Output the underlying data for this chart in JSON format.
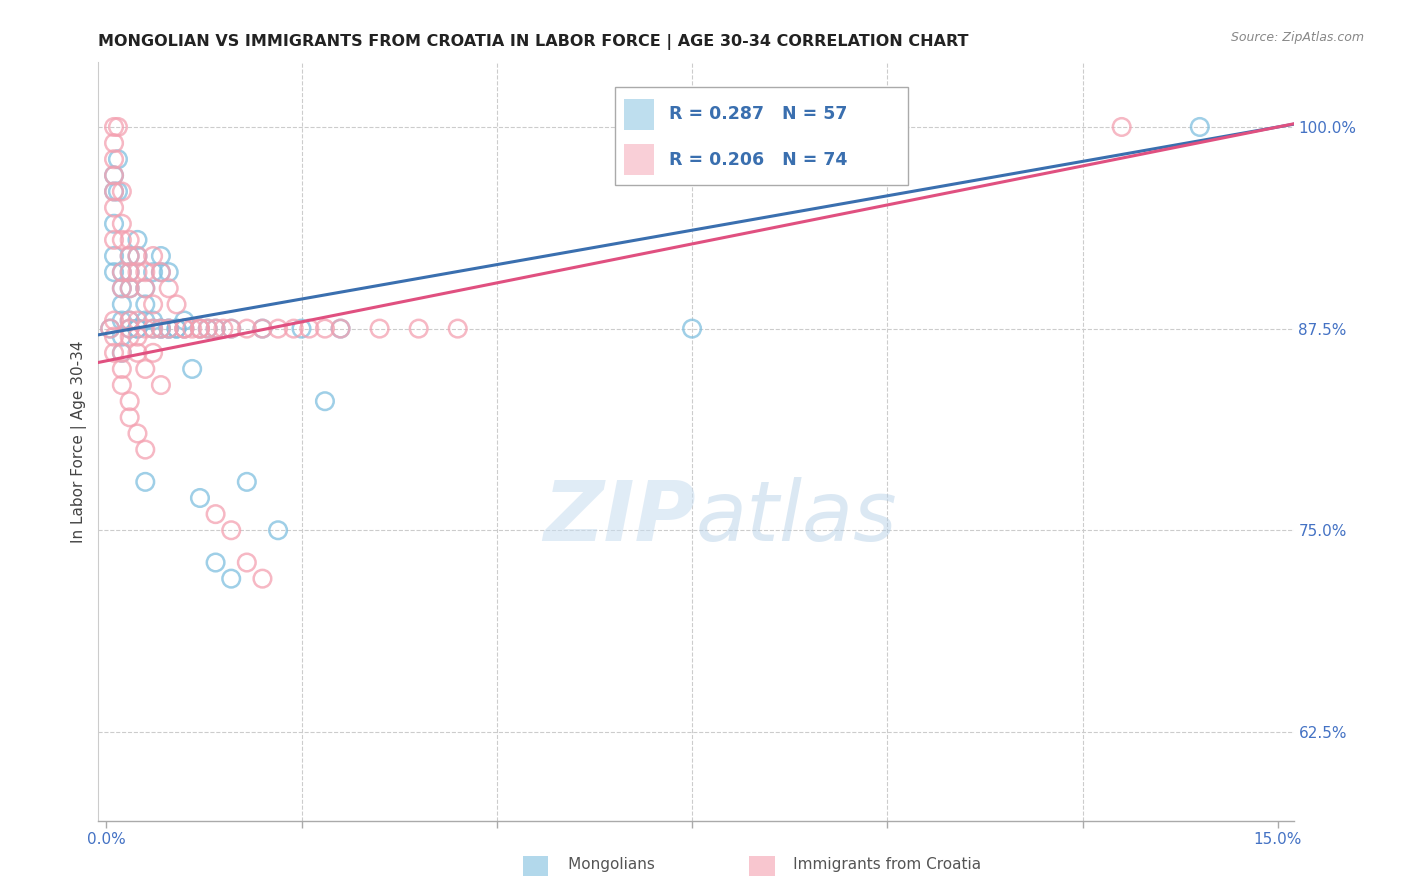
{
  "title": "MONGOLIAN VS IMMIGRANTS FROM CROATIA IN LABOR FORCE | AGE 30-34 CORRELATION CHART",
  "source": "Source: ZipAtlas.com",
  "ylabel": "In Labor Force | Age 30-34",
  "xlim": [
    0.0,
    0.15
  ],
  "ylim": [
    0.57,
    1.04
  ],
  "xticks": [
    0.0,
    0.025,
    0.05,
    0.075,
    0.1,
    0.125,
    0.15
  ],
  "xticklabels": [
    "0.0%",
    "",
    "",
    "",
    "",
    "",
    "15.0%"
  ],
  "yticks_right": [
    0.625,
    0.75,
    0.875,
    1.0
  ],
  "yticklabels_right": [
    "62.5%",
    "75.0%",
    "87.5%",
    "100.0%"
  ],
  "blue_R": 0.287,
  "blue_N": 57,
  "pink_R": 0.206,
  "pink_N": 74,
  "blue_color": "#7fbfdf",
  "pink_color": "#f4a0b0",
  "blue_line_color": "#3a6faf",
  "pink_line_color": "#e05080",
  "bg_color": "#ffffff",
  "grid_color": "#cccccc",
  "tick_label_color": "#4472c4",
  "title_color": "#222222",
  "source_color": "#888888",
  "blue_x": [
    0.0005,
    0.001,
    0.001,
    0.001,
    0.001,
    0.001,
    0.0015,
    0.0015,
    0.002,
    0.002,
    0.002,
    0.002,
    0.002,
    0.002,
    0.003,
    0.003,
    0.003,
    0.003,
    0.004,
    0.004,
    0.004,
    0.005,
    0.005,
    0.005,
    0.006,
    0.006,
    0.007,
    0.007,
    0.007,
    0.008,
    0.009,
    0.01,
    0.01,
    0.011,
    0.012,
    0.013,
    0.014,
    0.016,
    0.018,
    0.02,
    0.022,
    0.025,
    0.028,
    0.03,
    0.012,
    0.014,
    0.016,
    0.008,
    0.009,
    0.003,
    0.004,
    0.005,
    0.006,
    0.007,
    0.008,
    0.14,
    0.075
  ],
  "blue_y": [
    0.875,
    0.97,
    0.96,
    0.94,
    0.92,
    0.91,
    0.98,
    0.96,
    0.91,
    0.9,
    0.89,
    0.88,
    0.87,
    0.86,
    0.92,
    0.91,
    0.9,
    0.88,
    0.93,
    0.92,
    0.875,
    0.9,
    0.89,
    0.88,
    0.91,
    0.88,
    0.92,
    0.91,
    0.875,
    0.91,
    0.875,
    0.88,
    0.875,
    0.85,
    0.875,
    0.875,
    0.875,
    0.875,
    0.78,
    0.875,
    0.75,
    0.875,
    0.83,
    0.875,
    0.77,
    0.73,
    0.72,
    0.875,
    0.875,
    0.875,
    0.875,
    0.78,
    0.875,
    0.875,
    0.875,
    1.0,
    0.875
  ],
  "pink_x": [
    0.0005,
    0.001,
    0.001,
    0.001,
    0.001,
    0.001,
    0.001,
    0.001,
    0.0015,
    0.002,
    0.002,
    0.002,
    0.002,
    0.002,
    0.003,
    0.003,
    0.003,
    0.003,
    0.003,
    0.004,
    0.004,
    0.004,
    0.005,
    0.005,
    0.005,
    0.006,
    0.006,
    0.006,
    0.007,
    0.007,
    0.008,
    0.008,
    0.009,
    0.01,
    0.011,
    0.012,
    0.013,
    0.014,
    0.015,
    0.016,
    0.018,
    0.02,
    0.022,
    0.024,
    0.026,
    0.028,
    0.03,
    0.035,
    0.04,
    0.045,
    0.002,
    0.003,
    0.003,
    0.004,
    0.004,
    0.005,
    0.006,
    0.007,
    0.001,
    0.001,
    0.001,
    0.002,
    0.002,
    0.003,
    0.003,
    0.004,
    0.005,
    0.01,
    0.014,
    0.016,
    0.018,
    0.02,
    0.012,
    0.13
  ],
  "pink_y": [
    0.875,
    1.0,
    0.99,
    0.98,
    0.97,
    0.96,
    0.95,
    0.93,
    1.0,
    0.96,
    0.94,
    0.93,
    0.91,
    0.9,
    0.93,
    0.92,
    0.91,
    0.9,
    0.875,
    0.92,
    0.91,
    0.88,
    0.91,
    0.9,
    0.875,
    0.92,
    0.89,
    0.875,
    0.91,
    0.875,
    0.9,
    0.875,
    0.89,
    0.875,
    0.875,
    0.875,
    0.875,
    0.875,
    0.875,
    0.875,
    0.875,
    0.875,
    0.875,
    0.875,
    0.875,
    0.875,
    0.875,
    0.875,
    0.875,
    0.875,
    0.86,
    0.87,
    0.88,
    0.86,
    0.87,
    0.85,
    0.86,
    0.84,
    0.88,
    0.87,
    0.86,
    0.85,
    0.84,
    0.83,
    0.82,
    0.81,
    0.8,
    0.875,
    0.76,
    0.75,
    0.73,
    0.72,
    0.875,
    1.0
  ]
}
